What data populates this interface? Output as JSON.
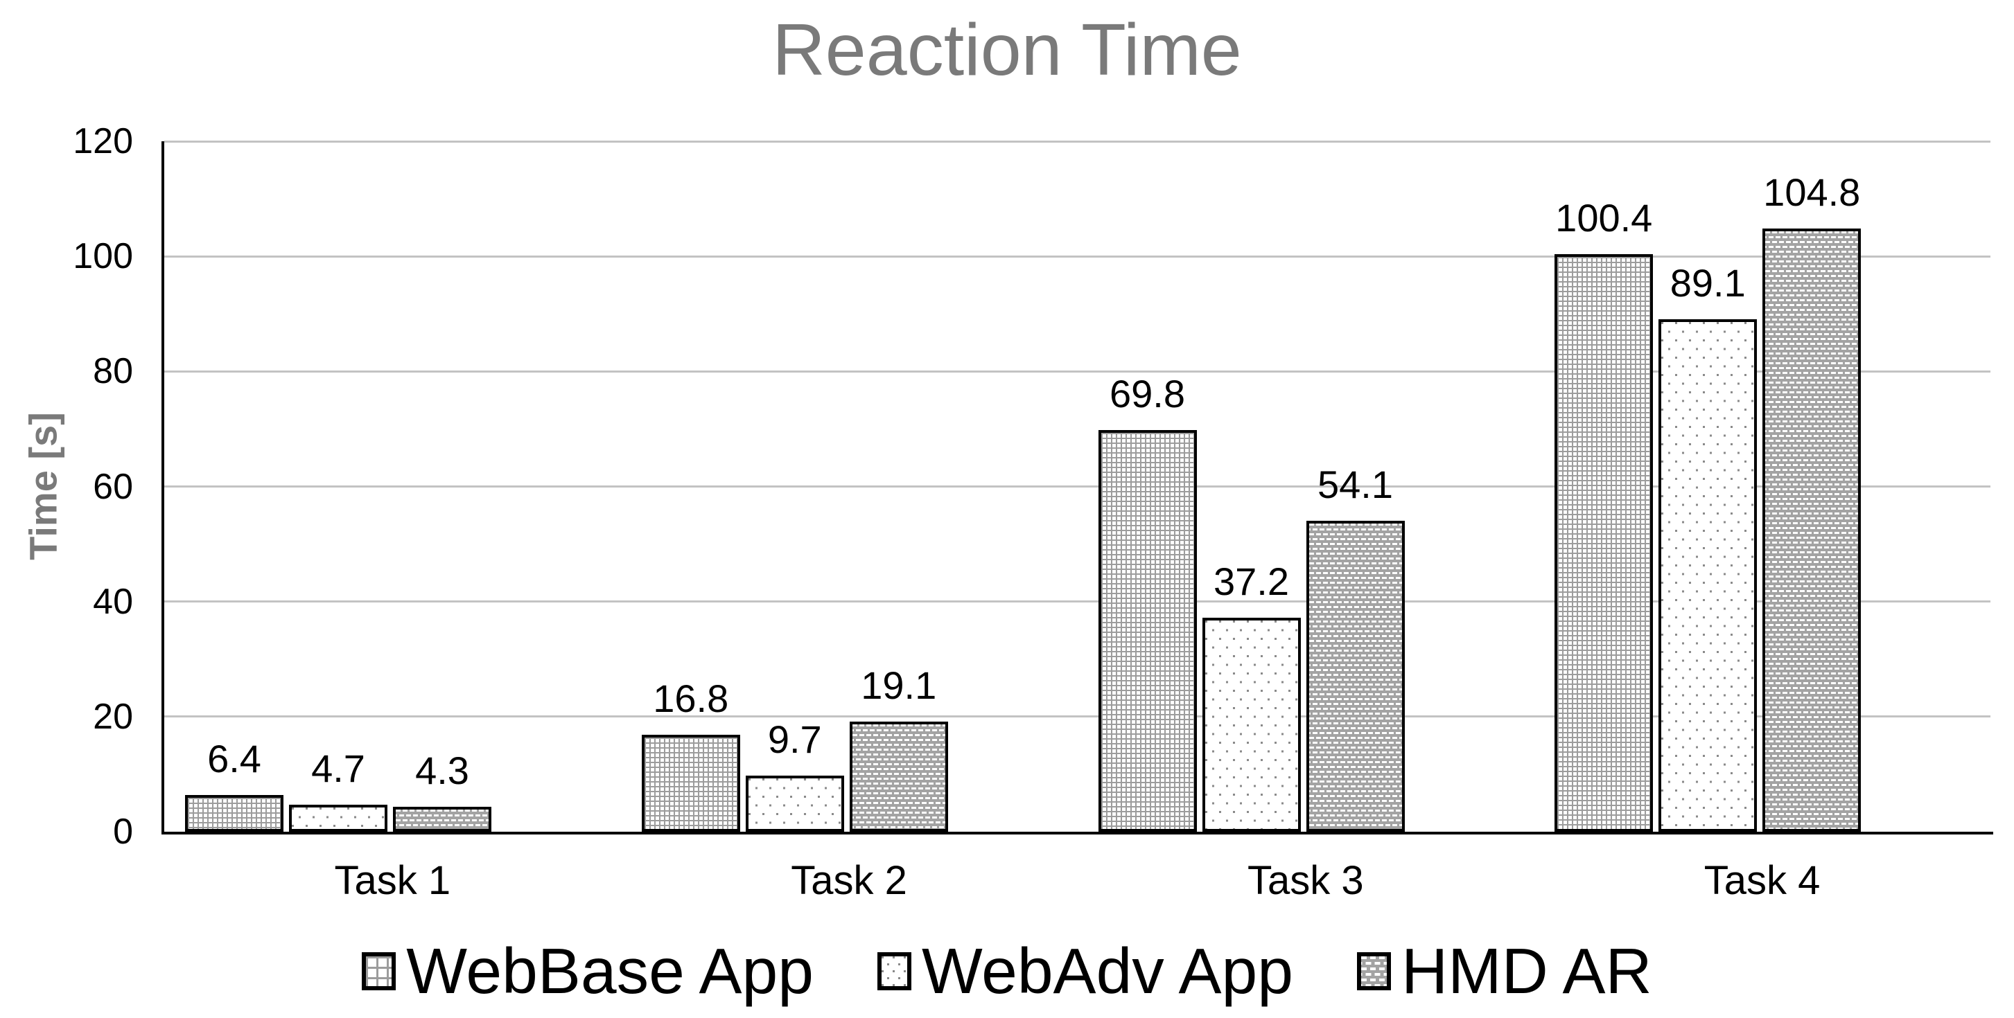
{
  "chart_data": {
    "type": "bar",
    "title": "Reaction Time",
    "xlabel": "",
    "ylabel": "Time [s]",
    "categories": [
      "Task 1",
      "Task 2",
      "Task 3",
      "Task 4"
    ],
    "series": [
      {
        "name": "WebBase App",
        "pattern": "grid-crosshatch",
        "values": [
          6.4,
          16.8,
          69.8,
          100.4
        ]
      },
      {
        "name": "WebAdv App",
        "pattern": "dots",
        "values": [
          4.7,
          9.7,
          37.2,
          89.1
        ]
      },
      {
        "name": "HMD AR",
        "pattern": "gray-dashes",
        "values": [
          4.3,
          19.1,
          54.1,
          104.8
        ]
      }
    ],
    "ylim": [
      0,
      120
    ],
    "yticks": [
      0,
      20,
      40,
      60,
      80,
      100,
      120
    ],
    "grid": true,
    "data_labels": true,
    "legend_position": "bottom"
  },
  "colors": {
    "title_text": "#7a7a7a",
    "axis_label_text": "#7a7a7a",
    "tick_text": "#000000",
    "gridline": "#c3c3c3",
    "axis_line": "#000000",
    "bar_border": "#000000",
    "pattern_grid_line": "#9c9c9c",
    "pattern_dot": "#8a8a8a",
    "pattern_hmd_background": "#a3a3a3",
    "pattern_hmd_dash": "#ffffff"
  }
}
